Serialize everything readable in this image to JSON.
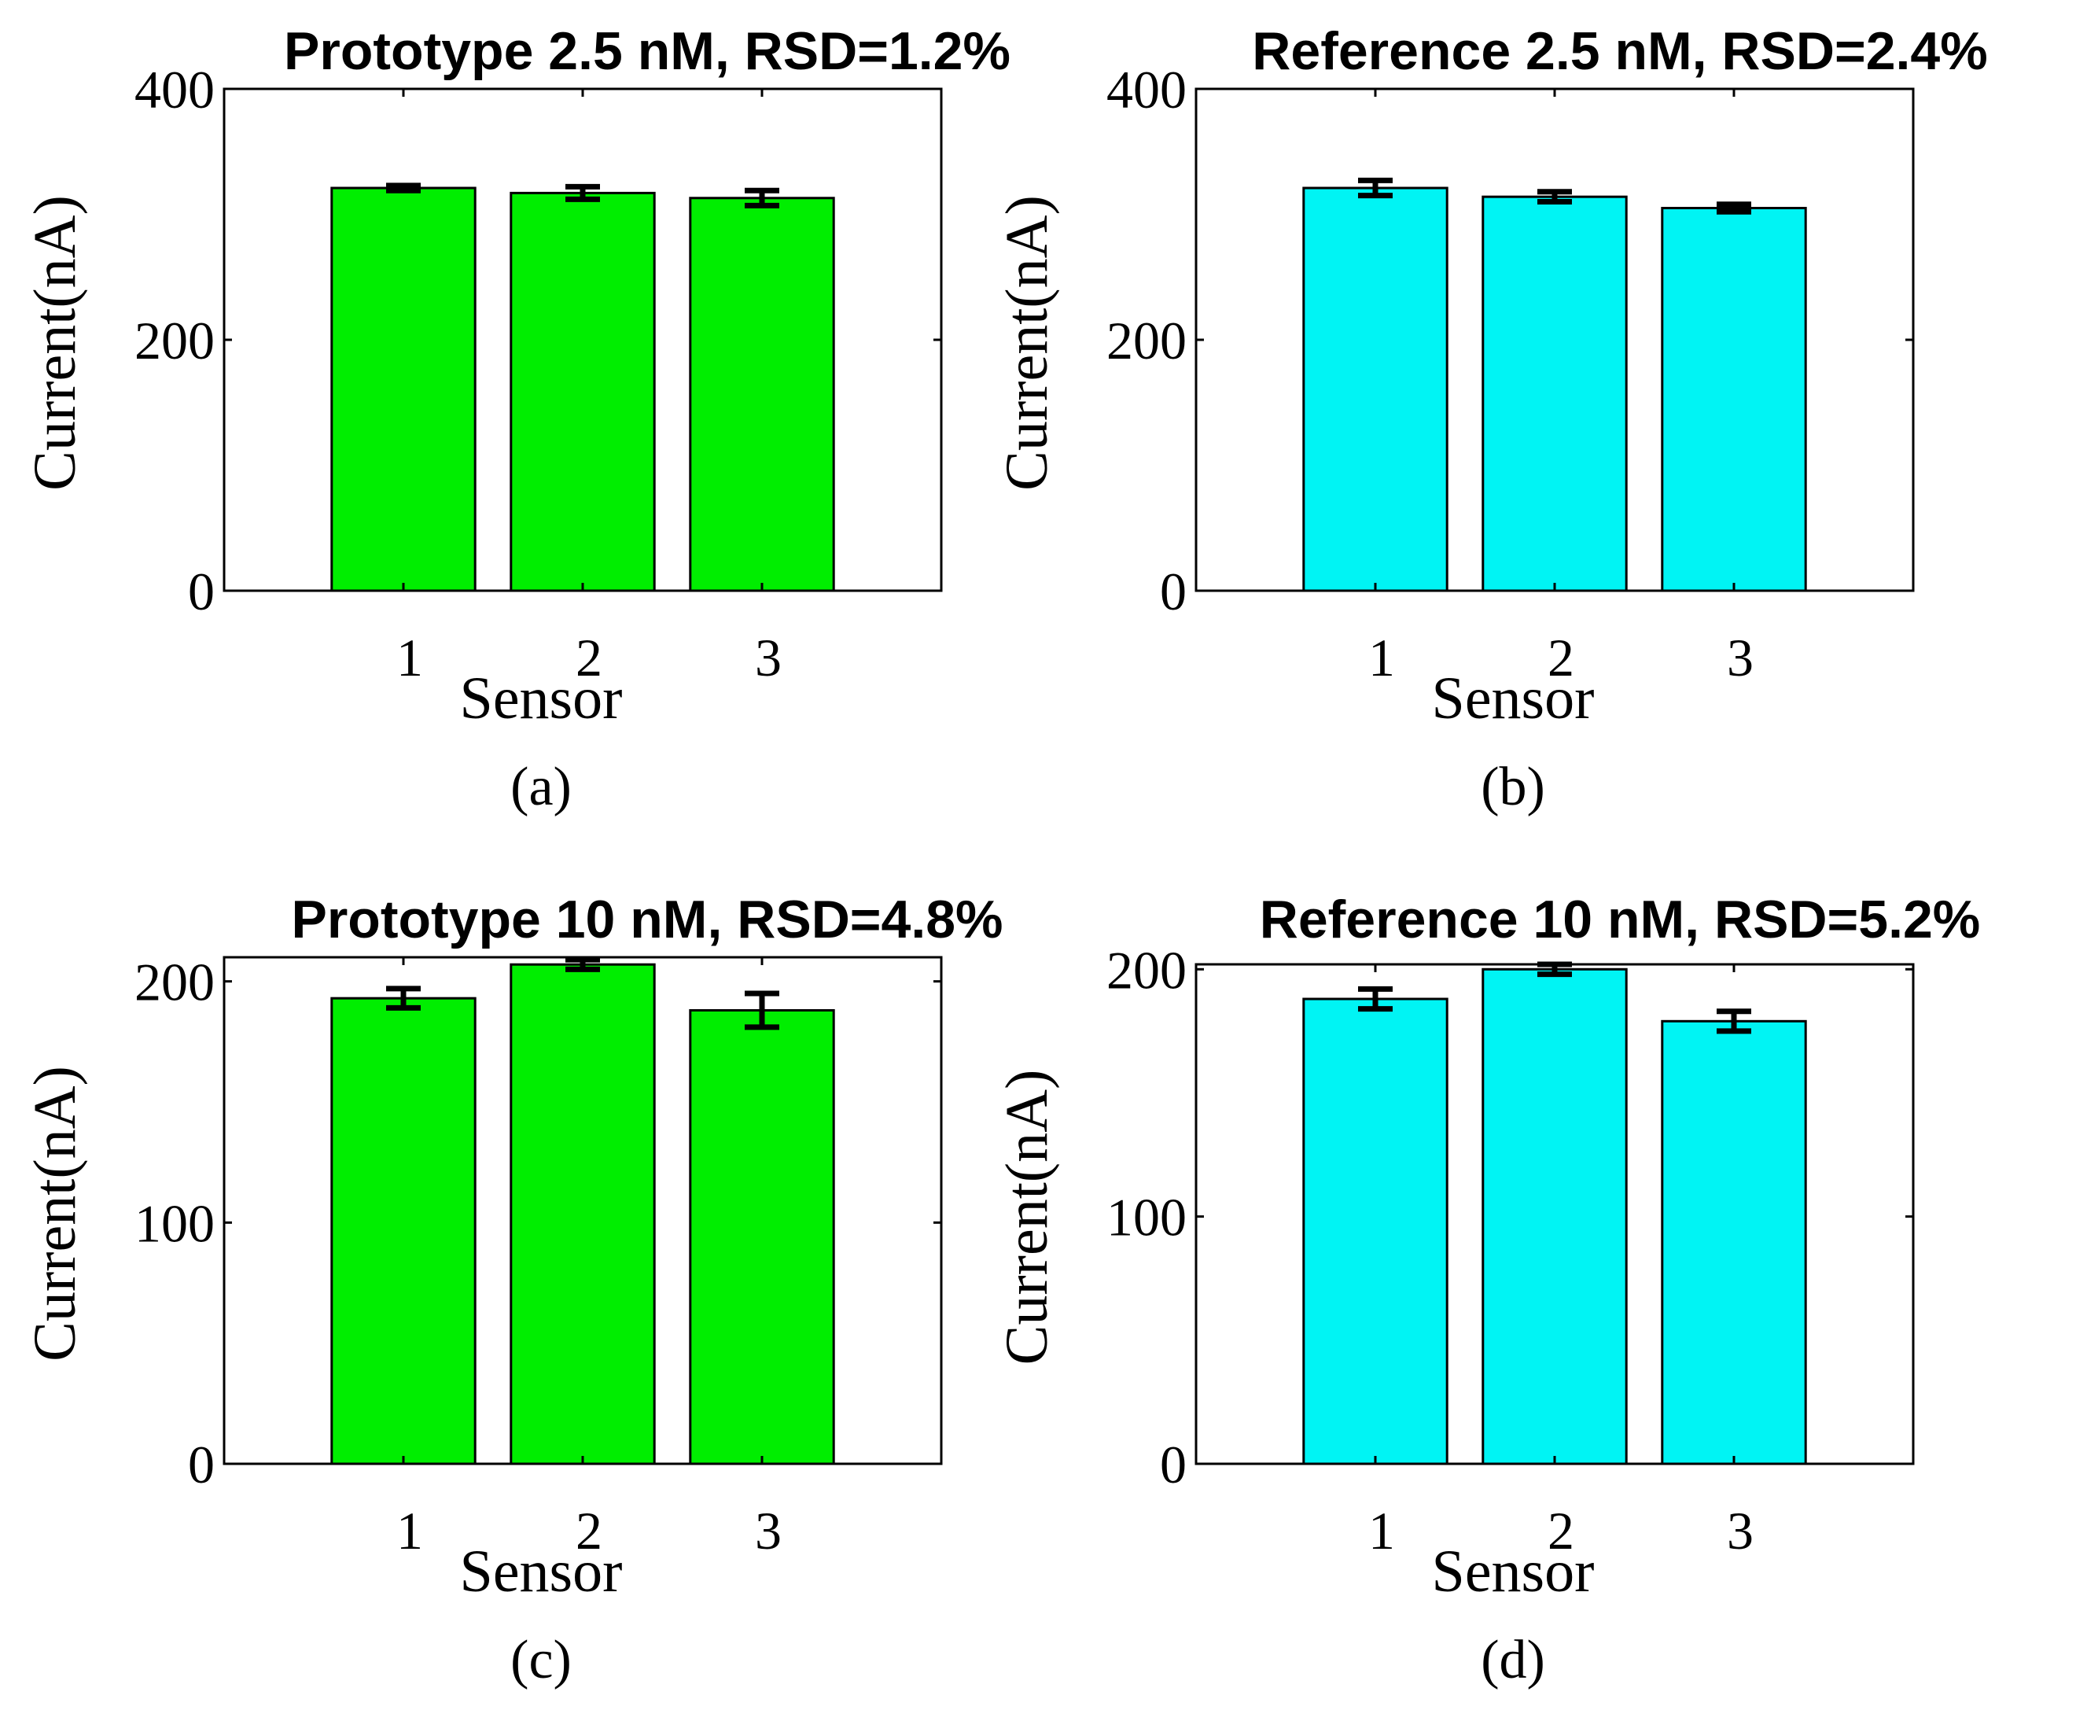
{
  "chart_data": [
    {
      "type": "bar",
      "title": "Prototype 2.5 nM, RSD=1.2%",
      "panel_label": "(a)",
      "xlabel": "Sensor",
      "ylabel": "Current(nA)",
      "categories": [
        "1",
        "2",
        "3"
      ],
      "values": [
        321,
        317,
        313
      ],
      "errors": [
        2,
        5,
        6
      ],
      "ylim": [
        0,
        400
      ],
      "yticks": [
        0,
        200,
        400
      ],
      "color": "#00ee00"
    },
    {
      "type": "bar",
      "title": "Reference 2.5 nM, RSD=2.4%",
      "panel_label": "(b)",
      "xlabel": "Sensor",
      "ylabel": "Current(nA)",
      "categories": [
        "1",
        "2",
        "3"
      ],
      "values": [
        321,
        314,
        305
      ],
      "errors": [
        6,
        4,
        3
      ],
      "ylim": [
        0,
        400
      ],
      "yticks": [
        0,
        200,
        400
      ],
      "color": "#00f4f4"
    },
    {
      "type": "bar",
      "title": "Prototype 10 nM, RSD=4.8%",
      "panel_label": "(c)",
      "xlabel": "Sensor",
      "ylabel": "Current(nA)",
      "categories": [
        "1",
        "2",
        "3"
      ],
      "values": [
        193,
        207,
        188
      ],
      "errors": [
        4,
        2,
        7
      ],
      "ylim": [
        0,
        210
      ],
      "yticks": [
        0,
        100,
        200
      ],
      "color": "#00ee00"
    },
    {
      "type": "bar",
      "title": "Reference 10 nM, RSD=5.2%",
      "panel_label": "(d)",
      "xlabel": "Sensor",
      "ylabel": "Current(nA)",
      "categories": [
        "1",
        "2",
        "3"
      ],
      "values": [
        188,
        200,
        179
      ],
      "errors": [
        4,
        2,
        4
      ],
      "ylim": [
        0,
        202
      ],
      "yticks": [
        0,
        100,
        200
      ],
      "color": "#00f4f4"
    }
  ]
}
